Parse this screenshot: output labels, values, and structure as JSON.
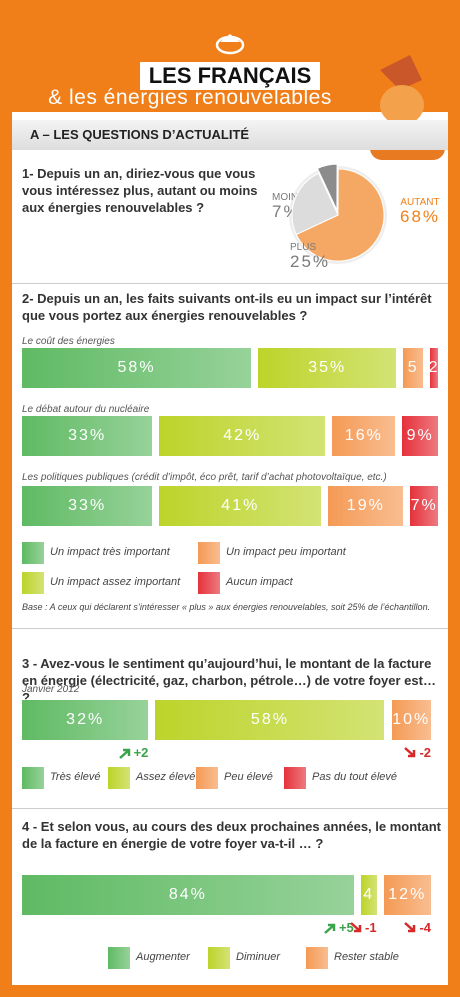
{
  "header": {
    "title": "LES FRANÇAIS",
    "subtitle": "& les énergies renouvelables"
  },
  "section_title": "A – LES QUESTIONS D’ACTUALITÉ",
  "q1": {
    "question": "1- Depuis un an, diriez-vous que vous vous intéressez plus, autant ou moins aux énergies renouvelables ?",
    "type": "pie",
    "categories": [
      "MOINS",
      "AUTANT",
      "PLUS"
    ],
    "values": [
      7,
      68,
      25
    ],
    "value_labels": [
      "7%",
      "68%",
      "25%"
    ],
    "colors": [
      "#8c8c8c",
      "#f5a863",
      "#dcdcdc"
    ],
    "label_colors": [
      "#7a7a7a",
      "#f08019",
      "#7a7a7a"
    ]
  },
  "q2": {
    "question": "2- Depuis un an, les faits suivants ont-ils eu un impact sur l’intérêt que vous portez aux énergies renouvelables ?",
    "type": "stacked-bar",
    "rows": [
      {
        "label": "Le coût des énergies",
        "values": [
          58,
          35,
          5,
          2
        ],
        "value_labels": [
          "58%",
          "35%",
          "5",
          "2"
        ]
      },
      {
        "label": "Le débat autour du nucléaire",
        "values": [
          33,
          42,
          16,
          9
        ],
        "value_labels": [
          "33%",
          "42%",
          "16%",
          "9%"
        ]
      },
      {
        "label": "Les politiques publiques (crédit d’impôt, éco prêt, tarif d’achat photovoltaïque, etc.)",
        "values": [
          33,
          41,
          19,
          7
        ],
        "value_labels": [
          "33%",
          "41%",
          "19%",
          "7%"
        ]
      }
    ],
    "legend": [
      {
        "name": "Un impact très important",
        "color": "#5fba63"
      },
      {
        "name": "Un impact assez important",
        "color": "#bcd42a"
      },
      {
        "name": "Un impact peu important",
        "color": "#f59a55"
      },
      {
        "name": "Aucun impact",
        "color": "#e5323b"
      }
    ],
    "note": "Base : A ceux qui déclarent s’intéresser « plus » aux énergies renouvelables, soit 25% de l’échantillon."
  },
  "q3": {
    "question": "3 - Avez-vous le sentiment qu’aujourd’hui, le montant de la facture en énergie (électricité, gaz, charbon, pétrole…) de votre foyer est… ?",
    "type": "stacked-bar",
    "rows": [
      {
        "label": "Janvier 2012",
        "values": [
          32,
          58,
          10
        ],
        "value_labels": [
          "32%",
          "58%",
          "10%"
        ],
        "changes": [
          {
            "value": 2,
            "label": "+2"
          },
          null,
          -2
        ]
      }
    ],
    "legend": [
      {
        "name": "Très élevé",
        "color": "#5fba63"
      },
      {
        "name": "Assez élevé",
        "color": "#bcd42a"
      },
      {
        "name": "Peu élevé",
        "color": "#f59a55"
      },
      {
        "name": "Pas du tout élevé",
        "color": "#e5323b"
      }
    ]
  },
  "q4": {
    "question": "4 - Et selon vous, au cours des deux prochaines années, le montant de la facture en énergie de votre foyer va-t-il … ?",
    "type": "stacked-bar",
    "rows": [
      {
        "values": [
          84,
          4,
          12
        ],
        "value_labels": [
          "84%",
          "4",
          "12%"
        ],
        "changes": [
          {
            "value": 5,
            "label": "+5"
          },
          -1,
          -4
        ]
      }
    ],
    "legend": [
      {
        "name": "Augmenter",
        "color": "#5fba63"
      },
      {
        "name": "Diminuer",
        "color": "#bcd42a"
      },
      {
        "name": "Rester stable",
        "color": "#f59a55"
      }
    ]
  }
}
